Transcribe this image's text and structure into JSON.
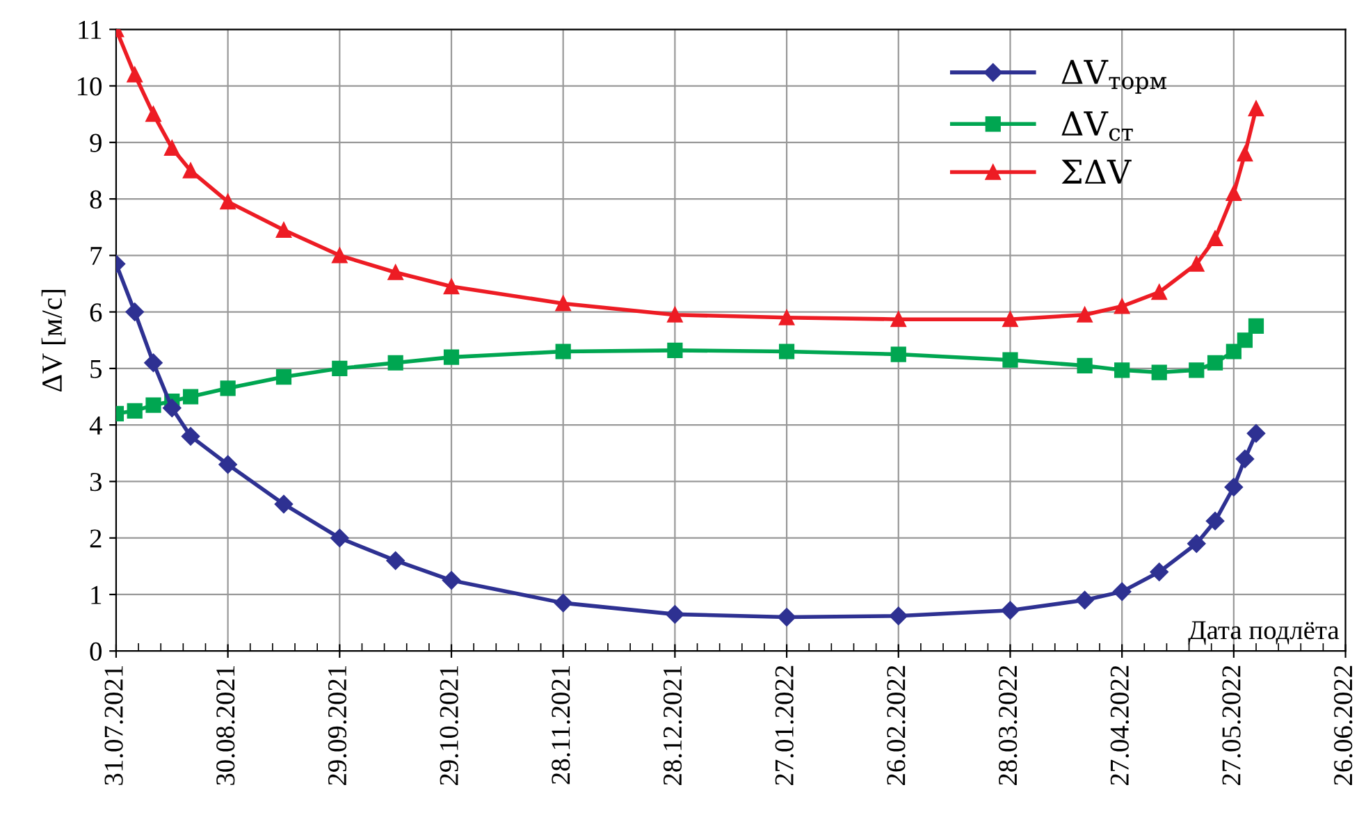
{
  "chart_data": {
    "type": "line",
    "ylabel": "ΔV [м/с]",
    "xlabel": "Дата подлёта",
    "xlim": [
      "2021-07-31",
      "2022-06-26"
    ],
    "xticks": [
      {
        "value": "2021-07-31",
        "label": "31.07.2021"
      },
      {
        "value": "2021-08-30",
        "label": "30.08.2021"
      },
      {
        "value": "2021-09-29",
        "label": "29.09.2021"
      },
      {
        "value": "2021-10-29",
        "label": "29.10.2021"
      },
      {
        "value": "2021-11-28",
        "label": "28.11.2021"
      },
      {
        "value": "2021-12-28",
        "label": "28.12.2021"
      },
      {
        "value": "2022-01-27",
        "label": "27.01.2022"
      },
      {
        "value": "2022-02-26",
        "label": "26.02.2022"
      },
      {
        "value": "2022-03-28",
        "label": "28.03.2022"
      },
      {
        "value": "2022-04-27",
        "label": "27.04.2022"
      },
      {
        "value": "2022-05-27",
        "label": "27.05.2022"
      },
      {
        "value": "2022-06-26",
        "label": "26.06.2022"
      }
    ],
    "ylim": [
      0,
      11
    ],
    "yticks": [
      0,
      1,
      2,
      3,
      4,
      5,
      6,
      7,
      8,
      9,
      10,
      11
    ],
    "grid": true,
    "legend": "top right",
    "x": [
      "2021-07-31",
      "2021-08-05",
      "2021-08-10",
      "2021-08-15",
      "2021-08-20",
      "2021-08-30",
      "2021-09-14",
      "2021-09-29",
      "2021-10-14",
      "2021-10-29",
      "2021-11-28",
      "2021-12-28",
      "2022-01-27",
      "2022-02-26",
      "2022-03-28",
      "2022-04-17",
      "2022-04-27",
      "2022-05-07",
      "2022-05-17",
      "2022-05-22",
      "2022-05-27",
      "2022-05-30",
      "2022-06-02"
    ],
    "series": [
      {
        "name": "ΔV$_{торм}$",
        "color": "#2e3192",
        "marker": "diamond",
        "values": [
          6.85,
          6.0,
          5.1,
          4.3,
          3.8,
          3.3,
          2.6,
          2.0,
          1.6,
          1.25,
          0.85,
          0.65,
          0.6,
          0.62,
          0.72,
          0.9,
          1.05,
          1.4,
          1.9,
          2.3,
          2.9,
          3.4,
          3.85
        ]
      },
      {
        "name": "ΔV$_{ст}$",
        "color": "#00a651",
        "marker": "square",
        "values": [
          4.2,
          4.25,
          4.35,
          4.42,
          4.5,
          4.65,
          4.85,
          5.0,
          5.1,
          5.2,
          5.3,
          5.32,
          5.3,
          5.25,
          5.15,
          5.05,
          4.97,
          4.93,
          4.97,
          5.1,
          5.3,
          5.5,
          5.75
        ]
      },
      {
        "name": "ΣΔV",
        "color": "#ed1c24",
        "marker": "triangle",
        "values": [
          11.0,
          10.2,
          9.5,
          8.9,
          8.5,
          7.95,
          7.45,
          7.0,
          6.7,
          6.45,
          6.15,
          5.95,
          5.9,
          5.87,
          5.87,
          5.95,
          6.1,
          6.35,
          6.85,
          7.3,
          8.1,
          8.8,
          9.6
        ]
      }
    ]
  }
}
